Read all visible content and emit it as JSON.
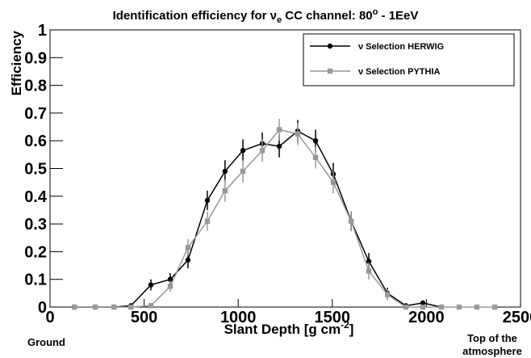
{
  "chart_data": {
    "type": "line",
    "title": [
      "Identification efficiency for ν",
      "e",
      " CC channel: 80",
      "o",
      " - 1EeV"
    ],
    "xlabel": [
      "Slant Depth [g cm",
      "-2",
      "]"
    ],
    "ylabel": "Efficiency",
    "annotations": [
      "Ground",
      "Top of the",
      "atmosphere"
    ],
    "x": [
      130,
      240,
      340,
      430,
      536,
      639,
      733,
      836,
      930,
      1025,
      1128,
      1218,
      1316,
      1411,
      1505,
      1600,
      1694,
      1793,
      1891,
      1981,
      2080,
      2174,
      2268,
      2363
    ],
    "series": [
      {
        "name": "ν Selection HERWIG",
        "color": "#000000",
        "marker": "circle",
        "values": [
          0,
          0,
          0,
          0.005,
          0.08,
          0.1,
          0.17,
          0.385,
          0.49,
          0.565,
          0.59,
          0.58,
          0.635,
          0.6,
          0.48,
          0.31,
          0.165,
          0.05,
          0.005,
          0.015,
          0,
          null,
          null,
          null
        ],
        "errors": [
          0.003,
          0.003,
          0.003,
          0.005,
          0.02,
          0.022,
          0.03,
          0.035,
          0.04,
          0.04,
          0.04,
          0.04,
          0.04,
          0.04,
          0.04,
          0.035,
          0.03,
          0.02,
          0.005,
          0.008,
          0.003,
          null,
          null,
          null
        ]
      },
      {
        "name": "ν Selection PYTHIA",
        "color": "#999999",
        "marker": "square",
        "values": [
          0,
          0,
          0,
          0,
          0.005,
          0.075,
          0.215,
          0.31,
          0.42,
          0.49,
          0.565,
          0.64,
          0.625,
          0.54,
          0.45,
          0.31,
          0.13,
          0.045,
          0,
          0,
          0,
          0,
          0,
          0
        ],
        "errors": [
          0.003,
          0.003,
          0.003,
          0.003,
          0.005,
          0.02,
          0.03,
          0.035,
          0.04,
          0.04,
          0.04,
          0.04,
          0.04,
          0.04,
          0.04,
          0.035,
          0.03,
          0.02,
          0.003,
          0.003,
          0.003,
          0.003,
          0.003,
          0.003
        ]
      }
    ],
    "xlim": [
      0,
      2500
    ],
    "xticks": [
      0,
      500,
      1000,
      1500,
      2000,
      2500
    ],
    "ylim": [
      0,
      1
    ],
    "yticks": [
      0,
      0.1,
      0.2,
      0.3,
      0.4,
      0.5,
      0.6,
      0.7,
      0.8,
      0.9,
      1
    ],
    "legend": "upper right"
  }
}
